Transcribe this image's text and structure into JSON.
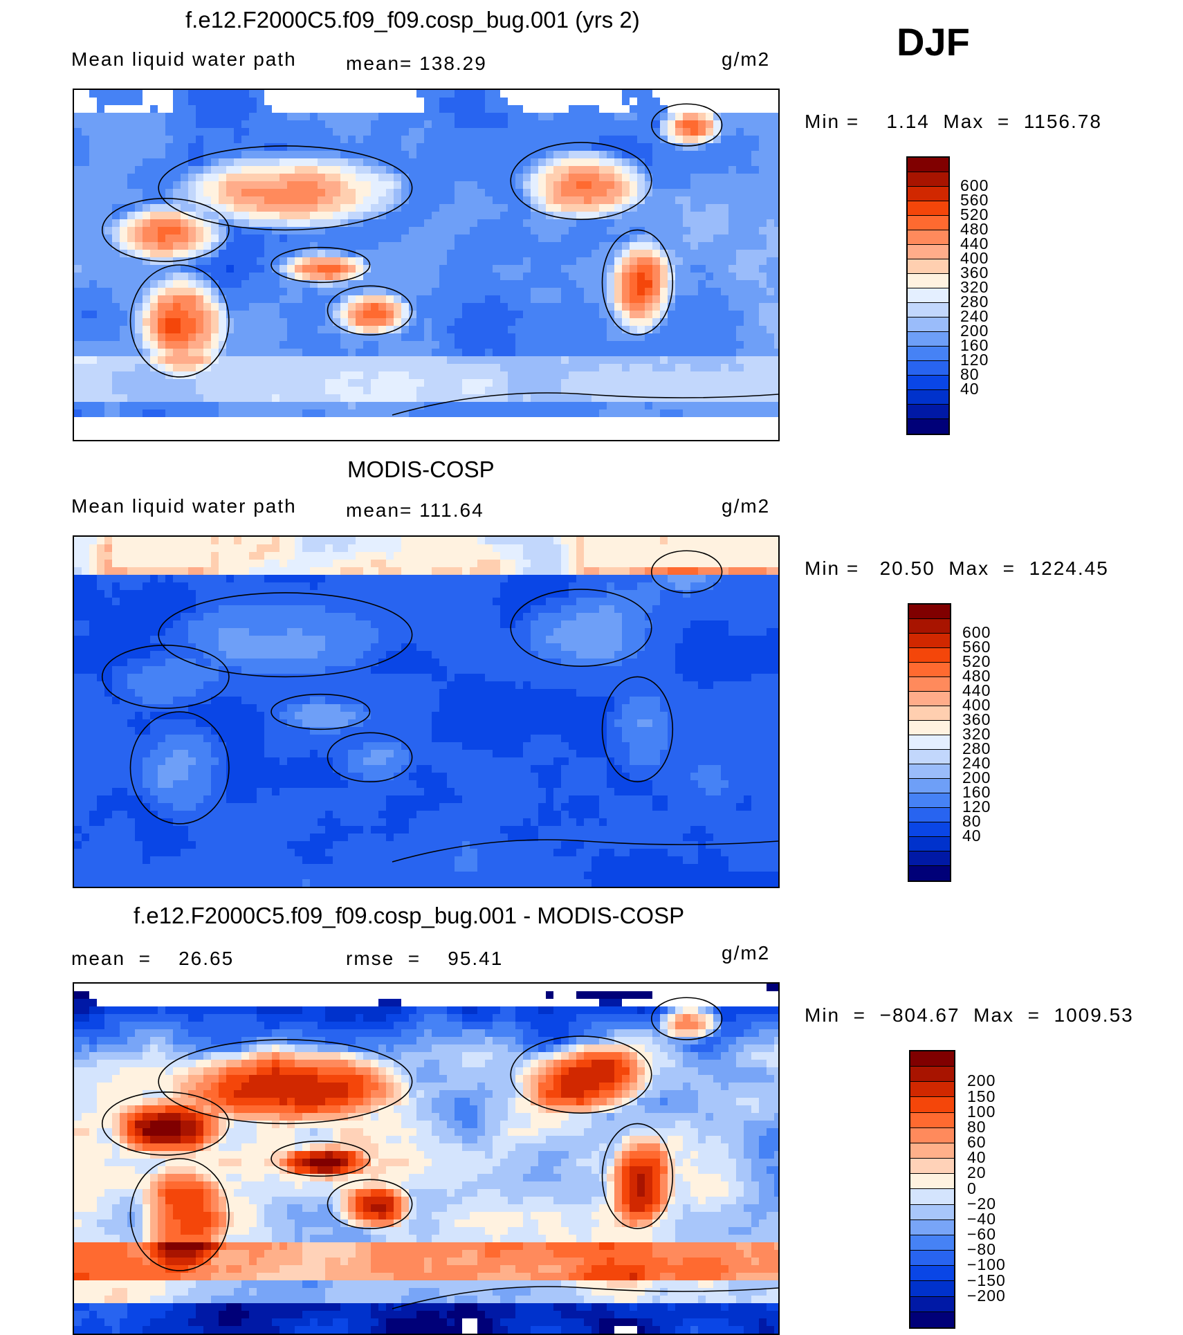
{
  "season": "DJF",
  "palettes": {
    "abs": [
      "#000078",
      "#0019a6",
      "#0032cc",
      "#0a46e6",
      "#2864f0",
      "#4682f5",
      "#6e9ff7",
      "#9abcfa",
      "#c2d7fc",
      "#e4efff",
      "#fff2e0",
      "#ffcfb0",
      "#ffac8a",
      "#ff8a5c",
      "#ff6a30",
      "#f4460a",
      "#d12800",
      "#a81400",
      "#800000"
    ],
    "diff": [
      "#000078",
      "#0019a6",
      "#0032cc",
      "#0a46e6",
      "#2864f0",
      "#4682f5",
      "#78a5f7",
      "#a8c6fa",
      "#d4e4fd",
      "#fff2e0",
      "#ffd2b8",
      "#ffb08a",
      "#ff8a5c",
      "#ff6a30",
      "#f4460a",
      "#d12800",
      "#a81400",
      "#800000"
    ]
  },
  "panels": [
    {
      "title": "f.e12.F2000C5.f09_f09.cosp_bug.001 (yrs 2)",
      "left_label": "Mean liquid water path",
      "center_label": "mean= 138.29",
      "units": "g/m2",
      "minmax": "Min =    1.14  Max  =  1156.78",
      "palette": "abs",
      "ticks": [
        "600",
        "560",
        "520",
        "480",
        "440",
        "400",
        "360",
        "320",
        "280",
        "240",
        "200",
        "160",
        "120",
        "80",
        "40"
      ]
    },
    {
      "title": "MODIS-COSP",
      "left_label": "Mean liquid water path",
      "center_label": "mean= 111.64",
      "units": "g/m2",
      "minmax": "Min =   20.50  Max  =  1224.45",
      "palette": "abs",
      "ticks": [
        "600",
        "560",
        "520",
        "480",
        "440",
        "400",
        "360",
        "320",
        "280",
        "240",
        "200",
        "160",
        "120",
        "80",
        "40"
      ]
    },
    {
      "title": "f.e12.F2000C5.f09_f09.cosp_bug.001 - MODIS-COSP",
      "left_label": "mean  =    26.65",
      "center_label": "rmse  =    95.41",
      "units": "g/m2",
      "minmax": "Min  =  −804.67  Max  =  1009.53",
      "palette": "diff",
      "ticks": [
        "200",
        "150",
        "100",
        "80",
        "60",
        "40",
        "20",
        "0",
        "−20",
        "−40",
        "−60",
        "−80",
        "−100",
        "−150",
        "−200"
      ]
    }
  ]
}
